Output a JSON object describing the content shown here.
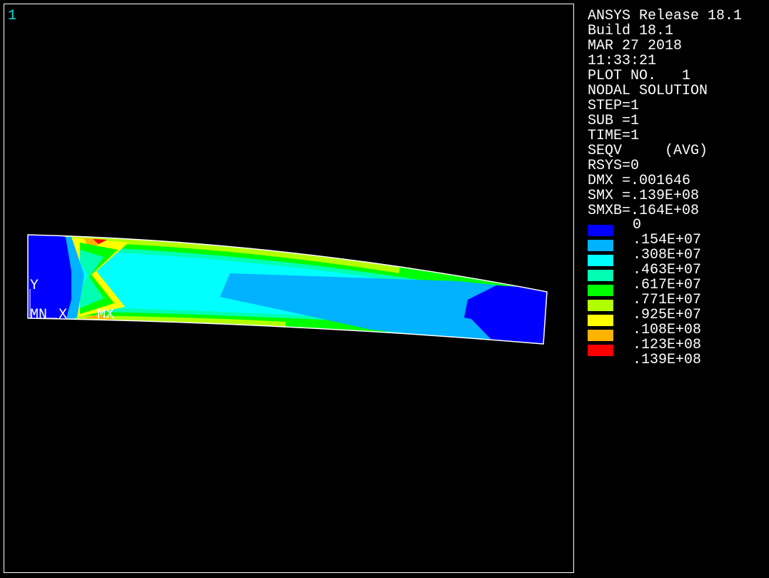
{
  "window": {
    "number": "1"
  },
  "info": {
    "lines": [
      "ANSYS Release 18.1",
      "Build 18.1",
      "MAR 27 2018",
      "11:33:21",
      "PLOT NO.   1",
      "NODAL SOLUTION",
      "STEP=1",
      "SUB =1",
      "TIME=1",
      "SEQV     (AVG)",
      "RSYS=0",
      "DMX =.001646",
      "SMX =.139E+08",
      "SMXB=.164E+08"
    ]
  },
  "legend": {
    "labels": [
      "0",
      ".154E+07",
      ".308E+07",
      ".463E+07",
      ".617E+07",
      ".771E+07",
      ".925E+07",
      ".108E+08",
      ".123E+08",
      ".139E+08"
    ],
    "colors": [
      "#0000ff",
      "#00b2ff",
      "#00ffff",
      "#00ffb2",
      "#00ff00",
      "#b2ff00",
      "#ffff00",
      "#ffb200",
      "#ff0000"
    ]
  },
  "model": {
    "labels": [
      "Y",
      "MN",
      "X",
      "MX"
    ]
  }
}
